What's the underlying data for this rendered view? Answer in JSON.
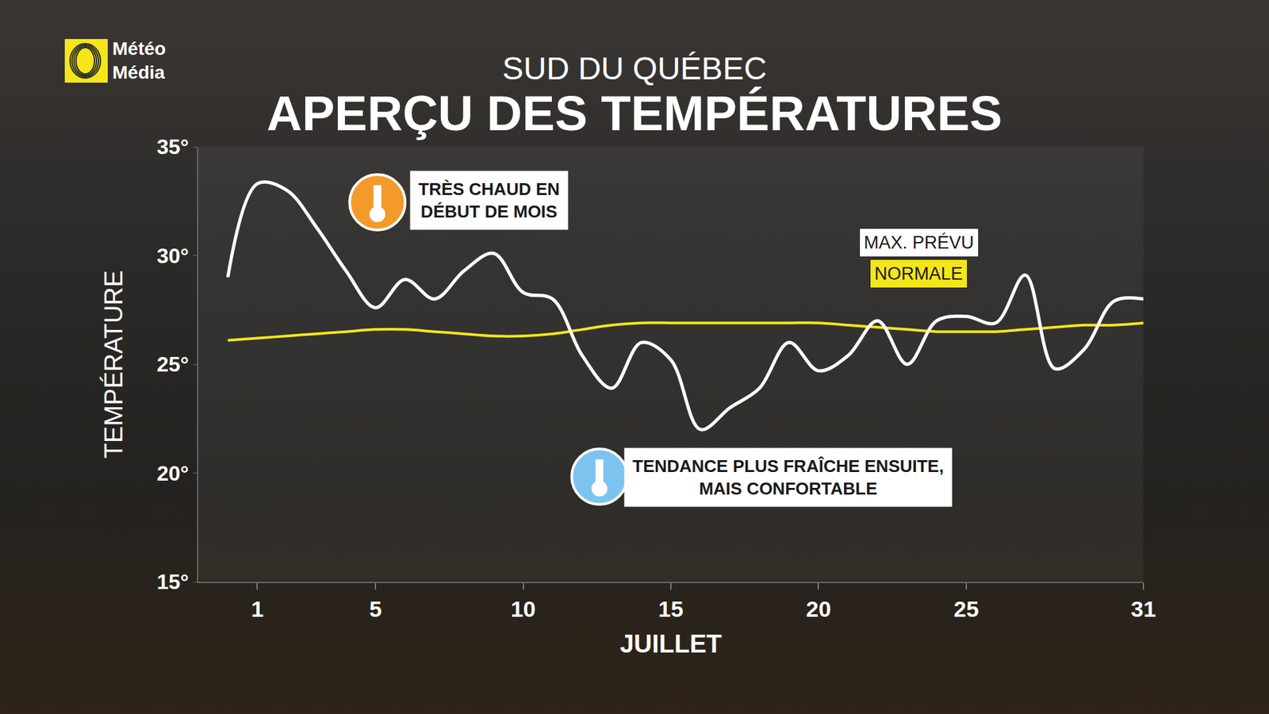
{
  "chart_data": {
    "type": "line",
    "logo": [
      "Météo",
      "Média"
    ],
    "subtitle": "SUD DU QUÉBEC",
    "title": "APERÇU DES TEMPÉRATURES",
    "x_label": "JUILLET",
    "y_label": "TEMPÉRATURE",
    "x": [
      0,
      1,
      2,
      3,
      4,
      5,
      6,
      7,
      8,
      9,
      10,
      11,
      12,
      13,
      14,
      15,
      16,
      17,
      18,
      19,
      20,
      21,
      22,
      23,
      24,
      25,
      26,
      27,
      28,
      29,
      30,
      31
    ],
    "series": [
      {
        "name": "MAX. PRÉVU",
        "color": "#ffffff",
        "values": [
          29.0,
          33.3,
          33.0,
          31.3,
          29.3,
          27.6,
          28.9,
          28.0,
          29.3,
          30.1,
          28.3,
          28.0,
          25.4,
          23.9,
          26.0,
          25.2,
          22.0,
          23.0,
          23.9,
          26.0,
          24.7,
          25.4,
          27.0,
          25.0,
          27.0,
          27.2,
          26.9,
          29.1,
          24.8,
          25.7,
          27.9,
          28.0
        ]
      },
      {
        "name": "NORMALE",
        "color": "#f5e61a",
        "values": [
          26.1,
          26.2,
          26.3,
          26.4,
          26.5,
          26.6,
          26.6,
          26.5,
          26.4,
          26.3,
          26.3,
          26.4,
          26.6,
          26.8,
          26.9,
          26.9,
          26.9,
          26.9,
          26.9,
          26.9,
          26.9,
          26.8,
          26.7,
          26.6,
          26.5,
          26.5,
          26.5,
          26.6,
          26.7,
          26.8,
          26.8,
          26.9
        ]
      }
    ],
    "xlim": [
      -1,
      31
    ],
    "xticks": [
      1,
      5,
      10,
      15,
      20,
      25,
      31
    ],
    "ylim": [
      15,
      35
    ],
    "yticks": [
      {
        "value": 15,
        "label": "15°"
      },
      {
        "value": 20,
        "label": "20°"
      },
      {
        "value": 25,
        "label": "25°"
      },
      {
        "value": 30,
        "label": "30°"
      },
      {
        "value": 35,
        "label": "35°"
      }
    ],
    "annotations": [
      {
        "lines": [
          "TRÈS CHAUD EN",
          "DÉBUT DE MOIS"
        ],
        "color": "#f39a2b"
      },
      {
        "lines": [
          "TENDANCE PLUS FRAÎCHE ENSUITE,",
          "MAIS CONFORTABLE"
        ],
        "color": "#7cc4ef"
      }
    ],
    "grid": false,
    "legend": "upper right"
  }
}
